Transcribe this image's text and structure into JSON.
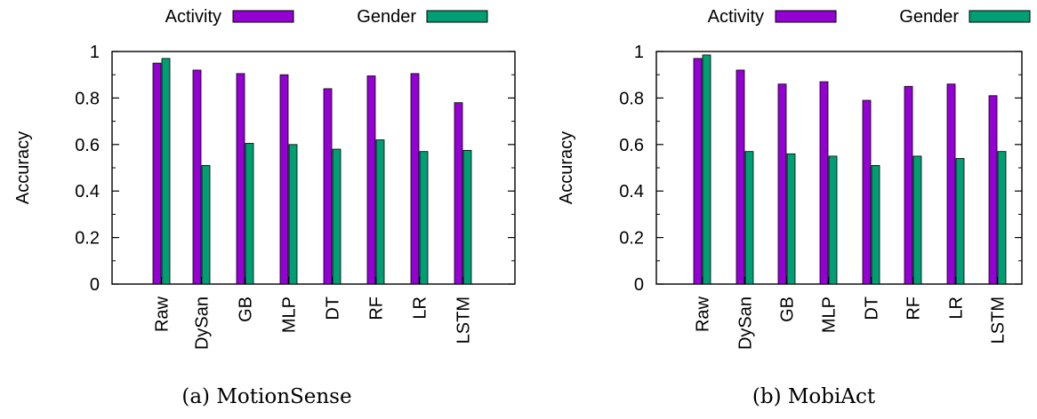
{
  "colors": {
    "activity": "#9400d3",
    "gender": "#009e73",
    "axis": "#000000"
  },
  "chart_data": [
    {
      "type": "bar",
      "title": "",
      "caption": "(a) MotionSense",
      "xlabel": "",
      "ylabel": "Accuracy",
      "ylim": [
        0,
        1
      ],
      "yticks": [
        "0",
        "0.2",
        "0.4",
        "0.6",
        "0.8",
        "1"
      ],
      "grid": false,
      "legend_position": "top",
      "categories": [
        "Raw",
        "DySan",
        "GB",
        "MLP",
        "DT",
        "RF",
        "LR",
        "LSTM"
      ],
      "series": [
        {
          "name": "Activity",
          "values": [
            0.95,
            0.92,
            0.905,
            0.9,
            0.84,
            0.895,
            0.905,
            0.78
          ]
        },
        {
          "name": "Gender",
          "values": [
            0.97,
            0.51,
            0.605,
            0.6,
            0.58,
            0.62,
            0.57,
            0.575
          ]
        }
      ]
    },
    {
      "type": "bar",
      "title": "",
      "caption": "(b) MobiAct",
      "xlabel": "",
      "ylabel": "Accuracy",
      "ylim": [
        0,
        1
      ],
      "yticks": [
        "0",
        "0.2",
        "0.4",
        "0.6",
        "0.8",
        "1"
      ],
      "grid": false,
      "legend_position": "top",
      "categories": [
        "Raw",
        "DySan",
        "GB",
        "MLP",
        "DT",
        "RF",
        "LR",
        "LSTM"
      ],
      "series": [
        {
          "name": "Activity",
          "values": [
            0.97,
            0.92,
            0.86,
            0.87,
            0.79,
            0.85,
            0.86,
            0.81
          ]
        },
        {
          "name": "Gender",
          "values": [
            0.985,
            0.57,
            0.56,
            0.55,
            0.51,
            0.55,
            0.54,
            0.57
          ]
        }
      ]
    }
  ]
}
